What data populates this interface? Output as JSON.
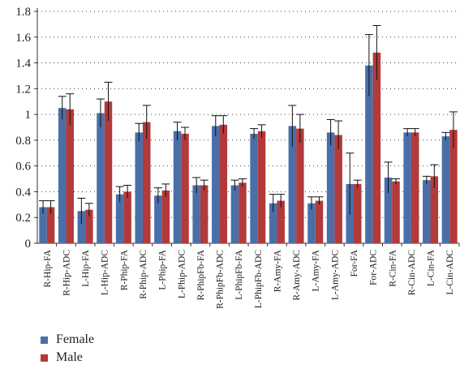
{
  "chart_data": {
    "type": "bar",
    "categories": [
      "R-Hip-FA",
      "R-Hip-ADC",
      "L-Hip-FA",
      "L-Hip-ADC",
      "R-Phip-FA",
      "R-Phip-ADC",
      "L-Phip-FA",
      "L-Phip-ADC",
      "R-PhipFb-FA",
      "R-PhipFb-ADC",
      "L-PhipFb-FA",
      "L-PhipFb-ADC",
      "R-Amy-FA",
      "R-Amy-ADC",
      "L-Amy-FA",
      "L-Amy-ADC",
      "For-FA",
      "For-ADC",
      "R-Cin-FA",
      "R-Cin-ADC",
      "L-Cin-FA",
      "L-Cin-ADC"
    ],
    "series": [
      {
        "name": "Female",
        "color": "#4a6fa8",
        "values": [
          0.28,
          1.05,
          0.25,
          1.01,
          0.38,
          0.86,
          0.37,
          0.87,
          0.45,
          0.91,
          0.45,
          0.85,
          0.31,
          0.91,
          0.31,
          0.86,
          0.46,
          1.38,
          0.51,
          0.86,
          0.49,
          0.83
        ],
        "errors": [
          0.05,
          0.09,
          0.1,
          0.11,
          0.06,
          0.07,
          0.06,
          0.07,
          0.06,
          0.08,
          0.04,
          0.04,
          0.07,
          0.16,
          0.05,
          0.1,
          0.24,
          0.24,
          0.12,
          0.03,
          0.03,
          0.03
        ]
      },
      {
        "name": "Male",
        "color": "#b23a3a",
        "values": [
          0.28,
          1.04,
          0.26,
          1.1,
          0.4,
          0.94,
          0.41,
          0.85,
          0.45,
          0.92,
          0.47,
          0.87,
          0.33,
          0.89,
          0.33,
          0.84,
          0.46,
          1.48,
          0.48,
          0.86,
          0.52,
          0.88
        ],
        "errors": [
          0.05,
          0.12,
          0.05,
          0.15,
          0.05,
          0.13,
          0.05,
          0.05,
          0.04,
          0.07,
          0.03,
          0.05,
          0.05,
          0.11,
          0.03,
          0.11,
          0.03,
          0.21,
          0.02,
          0.03,
          0.09,
          0.14
        ]
      }
    ],
    "ylim": [
      0,
      1.8
    ],
    "yticks": [
      0,
      0.2,
      0.4,
      0.6,
      0.8,
      1,
      1.2,
      1.4,
      1.6,
      1.8
    ],
    "ytick_labels": [
      "0",
      "0.2",
      "0.4",
      "0.6",
      "0.8",
      "1",
      "1.2",
      "1.4",
      "1.6",
      "1.8"
    ],
    "grid": "dotted-horizontal",
    "legend_position": "bottom-left",
    "title": "",
    "xlabel": "",
    "ylabel": ""
  }
}
